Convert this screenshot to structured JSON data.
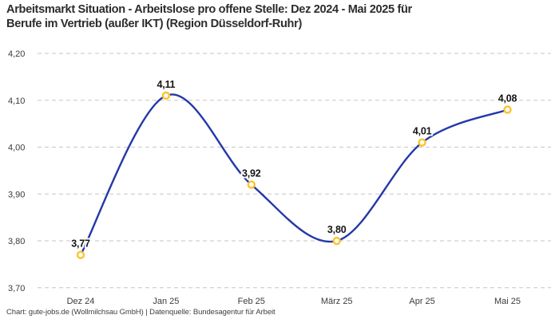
{
  "header": {
    "title": "Arbeitsmarkt Situation - Arbeitslose pro offene Stelle: Dez 2024 - Mai 2025 für\nBerufe im Vertrieb (außer IKT) (Region Düsseldorf-Ruhr)"
  },
  "footer": {
    "text": "Chart: gute-jobs.de (Wollmilchsau GmbH) | Datenquelle: Bundesagentur für Arbeit"
  },
  "chart_data": {
    "type": "line",
    "title": "Arbeitsmarkt Situation - Arbeitslose pro offene Stelle: Dez 2024 - Mai 2025 für Berufe im Vertrieb (außer IKT) (Region Düsseldorf-Ruhr)",
    "categories": [
      "Dez 24",
      "Jan 25",
      "Feb 25",
      "März 25",
      "Apr 25",
      "Mai 25"
    ],
    "values": [
      3.77,
      4.11,
      3.92,
      3.8,
      4.01,
      4.08
    ],
    "value_labels": [
      "3,77",
      "4,11",
      "3,92",
      "3,80",
      "4,01",
      "4,08"
    ],
    "ylim": [
      3.7,
      4.2
    ],
    "y_ticks": [
      {
        "value": 4.2,
        "label": "4,20"
      },
      {
        "value": 4.1,
        "label": "4,10"
      },
      {
        "value": 4.0,
        "label": "4,00"
      },
      {
        "value": 3.9,
        "label": "3,90"
      },
      {
        "value": 3.8,
        "label": "3,80"
      },
      {
        "value": 3.7,
        "label": "3,70"
      }
    ],
    "grid": "horizontal-dashed",
    "legend": "none",
    "xlabel": "",
    "ylabel": "",
    "line_color": "#2438a8",
    "marker_stroke_color": "#fbc32c",
    "marker_fill_color": "#ffffff",
    "gridline_color": "#c6c6c6"
  }
}
